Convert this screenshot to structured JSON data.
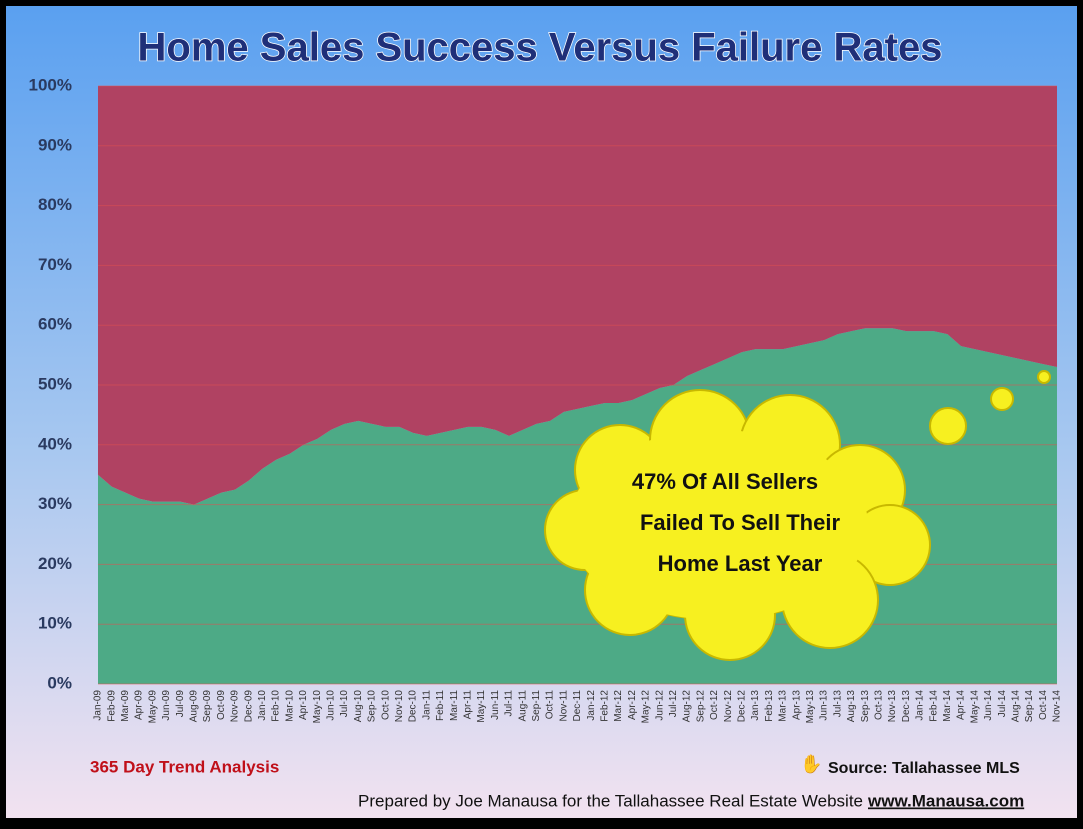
{
  "chart_data": {
    "type": "stacked_area",
    "title": "Home Sales Success Versus Failure Rates",
    "categories": [
      "Jan-09",
      "Feb-09",
      "Mar-09",
      "Apr-09",
      "May-09",
      "Jun-09",
      "Jul-09",
      "Aug-09",
      "Sep-09",
      "Oct-09",
      "Nov-09",
      "Dec-09",
      "Jan-10",
      "Feb-10",
      "Mar-10",
      "Apr-10",
      "May-10",
      "Jun-10",
      "Jul-10",
      "Aug-10",
      "Sep-10",
      "Oct-10",
      "Nov-10",
      "Dec-10",
      "Jan-11",
      "Feb-11",
      "Mar-11",
      "Apr-11",
      "May-11",
      "Jun-11",
      "Jul-11",
      "Aug-11",
      "Sep-11",
      "Oct-11",
      "Nov-11",
      "Dec-11",
      "Jan-12",
      "Feb-12",
      "Mar-12",
      "Apr-12",
      "May-12",
      "Jun-12",
      "Jul-12",
      "Aug-12",
      "Sep-12",
      "Oct-12",
      "Nov-12",
      "Dec-12",
      "Jan-13",
      "Feb-13",
      "Mar-13",
      "Apr-13",
      "May-13",
      "Jun-13",
      "Jul-13",
      "Aug-13",
      "Sep-13",
      "Oct-13",
      "Nov-13",
      "Dec-13",
      "Jan-14",
      "Feb-14",
      "Mar-14",
      "Apr-14",
      "May-14",
      "Jun-14",
      "Jul-14",
      "Aug-14",
      "Sep-14",
      "Oct-14",
      "Nov-14"
    ],
    "series": [
      {
        "color": "#4daa86",
        "values": [
          35,
          33,
          32,
          31,
          30.5,
          30.5,
          30.5,
          30,
          31,
          32,
          32.5,
          34,
          36,
          37.5,
          38.5,
          40,
          41,
          42.5,
          43.5,
          44,
          43.5,
          43,
          43,
          42,
          41.5,
          42,
          42.5,
          43,
          43,
          42.5,
          41.5,
          42.5,
          43.5,
          44,
          45.5,
          46,
          46.5,
          47,
          47,
          47.5,
          48.5,
          49.5,
          50,
          51.5,
          52.5,
          53.5,
          54.5,
          55.5,
          56,
          56,
          56,
          56.5,
          57,
          57.5,
          58.5,
          59,
          59.5,
          59.5,
          59.5,
          59,
          59,
          59,
          58.5,
          56.5,
          56,
          55.5,
          55,
          54.5,
          54,
          53.5,
          53
        ]
      },
      {
        "color": "#b04262",
        "values": [
          65,
          67,
          68,
          69,
          69.5,
          69.5,
          69.5,
          70,
          69,
          68,
          67.5,
          66,
          64,
          62.5,
          61.5,
          60,
          59,
          57.5,
          56.5,
          56,
          56.5,
          57,
          57,
          58,
          58.5,
          58,
          57.5,
          57,
          57,
          57.5,
          58.5,
          57.5,
          56.5,
          56,
          54.5,
          54,
          53.5,
          53,
          53,
          52.5,
          51.5,
          50.5,
          50,
          48.5,
          47.5,
          46.5,
          45.5,
          44.5,
          44,
          44,
          44,
          43.5,
          43,
          42.5,
          41.5,
          41,
          40.5,
          40.5,
          40.5,
          41,
          41,
          41,
          41.5,
          43.5,
          44,
          44.5,
          45,
          45.5,
          46,
          46.5,
          47
        ]
      }
    ],
    "ylim": [
      0,
      100
    ],
    "yticks": [
      {
        "value": 0,
        "label": "0%"
      },
      {
        "value": 10,
        "label": "10%"
      },
      {
        "value": 20,
        "label": "20%"
      },
      {
        "value": 30,
        "label": "30%"
      },
      {
        "value": 40,
        "label": "40%"
      },
      {
        "value": 50,
        "label": "50%"
      },
      {
        "value": 60,
        "label": "60%"
      },
      {
        "value": 70,
        "label": "70%"
      },
      {
        "value": 80,
        "label": "80%"
      },
      {
        "value": 90,
        "label": "90%"
      },
      {
        "value": 100,
        "label": "100%"
      }
    ],
    "grid": true,
    "annotation": [
      "47% Of All Sellers",
      "Failed To Sell Their",
      "Home Last Year"
    ],
    "footer_left": "365 Day Trend Analysis",
    "source": "Source: Tallahassee MLS",
    "credit": "Prepared by Joe Manausa for the Tallahassee Real Estate Website",
    "link": "www.Manausa.com"
  }
}
